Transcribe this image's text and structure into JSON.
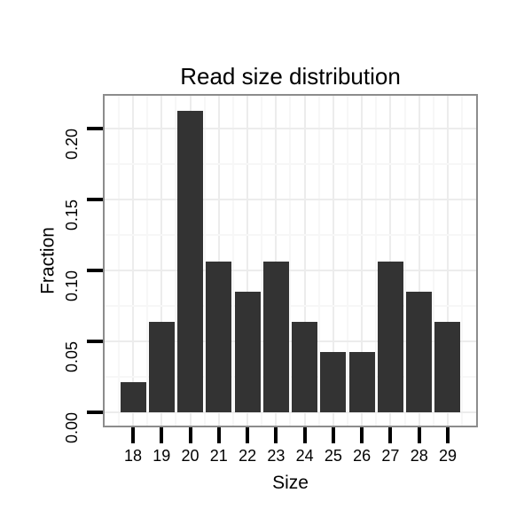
{
  "chart_data": {
    "type": "bar",
    "title": "Read size distribution",
    "xlabel": "Size",
    "ylabel": "Fraction",
    "categories": [
      "18",
      "19",
      "20",
      "21",
      "22",
      "23",
      "24",
      "25",
      "26",
      "27",
      "28",
      "29"
    ],
    "values": [
      0.0213,
      0.0638,
      0.2128,
      0.1064,
      0.0851,
      0.1064,
      0.0638,
      0.0426,
      0.0426,
      0.1064,
      0.0851,
      0.0638
    ],
    "y_ticks": [
      {
        "value": 0.0,
        "label": "0.00"
      },
      {
        "value": 0.05,
        "label": "0.05"
      },
      {
        "value": 0.1,
        "label": "0.10"
      },
      {
        "value": 0.15,
        "label": "0.15"
      },
      {
        "value": 0.2,
        "label": "0.20"
      }
    ],
    "y_minor_ticks": [
      0.025,
      0.075,
      0.125,
      0.175
    ],
    "ylim": [
      0,
      0.223
    ],
    "grid": "major-and-minor",
    "legend": "none",
    "colors": {
      "bar_fill": "#333333",
      "panel_border": "#8c8c8c",
      "grid_major": "#ececec",
      "grid_minor": "#f7f7f7",
      "axis_tick": "#000000",
      "text": "#000000",
      "background": "#ffffff"
    }
  }
}
